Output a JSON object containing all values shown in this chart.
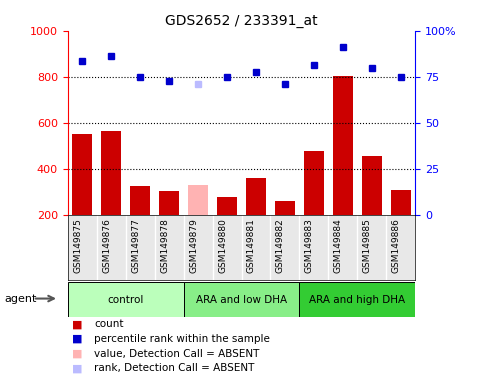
{
  "title": "GDS2652 / 233391_at",
  "samples": [
    "GSM149875",
    "GSM149876",
    "GSM149877",
    "GSM149878",
    "GSM149879",
    "GSM149880",
    "GSM149881",
    "GSM149882",
    "GSM149883",
    "GSM149884",
    "GSM149885",
    "GSM149886"
  ],
  "counts": [
    550,
    565,
    325,
    305,
    330,
    280,
    360,
    260,
    480,
    805,
    455,
    310
  ],
  "percentile_ranks": [
    87,
    89,
    80,
    78,
    null,
    80,
    82,
    77,
    85,
    93,
    84,
    80
  ],
  "absent_value": [
    null,
    null,
    null,
    null,
    330,
    null,
    null,
    null,
    null,
    null,
    null,
    null
  ],
  "absent_rank": [
    null,
    null,
    null,
    null,
    77,
    null,
    null,
    null,
    null,
    null,
    null,
    null
  ],
  "bar_color_normal": "#cc0000",
  "bar_color_absent": "#ffb3b3",
  "dot_color_normal": "#0000cc",
  "dot_color_absent": "#bbbbff",
  "group_colors": [
    "#bbffbb",
    "#88ee88",
    "#33cc33"
  ],
  "groups": [
    {
      "label": "control",
      "start": 0,
      "end": 4
    },
    {
      "label": "ARA and low DHA",
      "start": 4,
      "end": 8
    },
    {
      "label": "ARA and high DHA",
      "start": 8,
      "end": 12
    }
  ],
  "ylim_left": [
    200,
    1000
  ],
  "ylim_right": [
    0,
    100
  ],
  "yticks_left": [
    200,
    400,
    600,
    800,
    1000
  ],
  "yticks_right": [
    0,
    25,
    50,
    75,
    100
  ],
  "ytick_labels_right": [
    "0",
    "25",
    "50",
    "75",
    "100%"
  ],
  "bar_width": 0.7,
  "background_color": "#e8e8e8",
  "plot_bg": "#ffffff",
  "dotted_lines": [
    400,
    600,
    800
  ],
  "percentile_scale": 10,
  "legend_items": [
    {
      "label": "count",
      "color": "#cc0000"
    },
    {
      "label": "percentile rank within the sample",
      "color": "#0000cc"
    },
    {
      "label": "value, Detection Call = ABSENT",
      "color": "#ffb3b3"
    },
    {
      "label": "rank, Detection Call = ABSENT",
      "color": "#bbbbff"
    }
  ]
}
